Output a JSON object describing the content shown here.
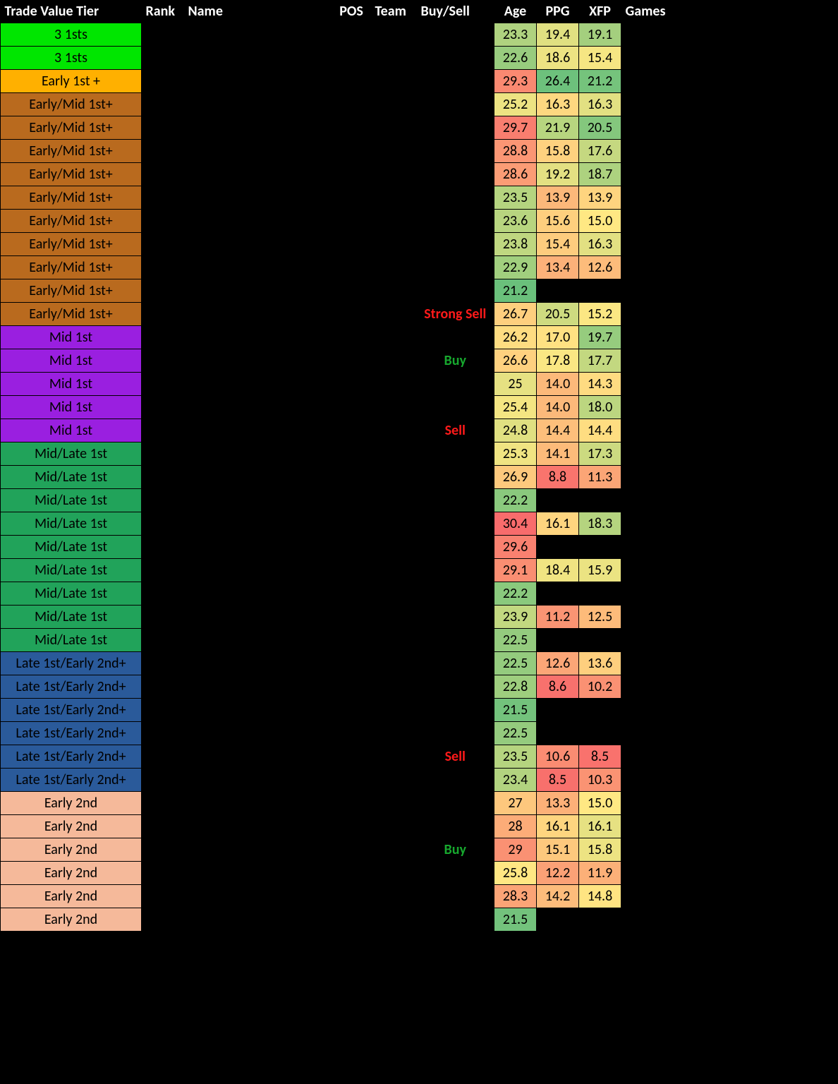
{
  "headers": {
    "tier": "Trade Value Tier",
    "rank": "Rank",
    "name": "Name",
    "pos": "POS",
    "team": "Team",
    "bs": "Buy/Sell",
    "age": "Age",
    "ppg": "PPG",
    "xfp": "XFP",
    "games": "Games"
  },
  "colors": {
    "header_text": "#ffffff",
    "bg": "#000000",
    "buy_text": "#17a82e",
    "sell_text": "#ff1a1a",
    "tier_border": "#000000"
  },
  "tier_colors": {
    "3 1sts": "#00e600",
    "Early 1st +": "#ffb000",
    "Early/Mid 1st+": "#b96a1e",
    "Mid 1st": "#9a1fe0",
    "Mid/Late 1st": "#21a35a",
    "Late 1st/Early 2nd+": "#2a5a9a",
    "Early 2nd": "#f5b99a"
  },
  "heat_scale": {
    "comment": "age: lower=green higher=red; ppg/xfp: higher=green lower=red",
    "age": {
      "min": 21.0,
      "max": 30.5,
      "low_color": "#63be7b",
      "mid_color": "#ffe883",
      "high_color": "#f8696b"
    },
    "ppg": {
      "min": 8.0,
      "max": 27.0,
      "low_color": "#f8696b",
      "mid_color": "#ffe883",
      "high_color": "#63be7b"
    },
    "xfp": {
      "min": 8.0,
      "max": 22.0,
      "low_color": "#f8696b",
      "mid_color": "#ffe883",
      "high_color": "#63be7b"
    }
  },
  "rows": [
    {
      "tier": "3 1sts",
      "bs": "",
      "age": 23.3,
      "ppg": 19.4,
      "xfp": 19.1
    },
    {
      "tier": "3 1sts",
      "bs": "",
      "age": 22.6,
      "ppg": 18.6,
      "xfp": 15.4
    },
    {
      "tier": "Early 1st +",
      "bs": "",
      "age": 29.3,
      "ppg": 26.4,
      "xfp": 21.2
    },
    {
      "tier": "Early/Mid 1st+",
      "bs": "",
      "age": 25.2,
      "ppg": 16.3,
      "xfp": 16.3
    },
    {
      "tier": "Early/Mid 1st+",
      "bs": "",
      "age": 29.7,
      "ppg": 21.9,
      "xfp": 20.5
    },
    {
      "tier": "Early/Mid 1st+",
      "bs": "",
      "age": 28.8,
      "ppg": 15.8,
      "xfp": 17.6
    },
    {
      "tier": "Early/Mid 1st+",
      "bs": "",
      "age": 28.6,
      "ppg": 19.2,
      "xfp": 18.7
    },
    {
      "tier": "Early/Mid 1st+",
      "bs": "",
      "age": 23.5,
      "ppg": 13.9,
      "xfp": 13.9
    },
    {
      "tier": "Early/Mid 1st+",
      "bs": "",
      "age": 23.6,
      "ppg": 15.6,
      "xfp": 15.0
    },
    {
      "tier": "Early/Mid 1st+",
      "bs": "",
      "age": 23.8,
      "ppg": 15.4,
      "xfp": 16.3
    },
    {
      "tier": "Early/Mid 1st+",
      "bs": "",
      "age": 22.9,
      "ppg": 13.4,
      "xfp": 12.6
    },
    {
      "tier": "Early/Mid 1st+",
      "bs": "",
      "age": 21.2,
      "ppg": null,
      "xfp": null
    },
    {
      "tier": "Early/Mid 1st+",
      "bs": "Strong Sell",
      "age": 26.7,
      "ppg": 20.5,
      "xfp": 15.2
    },
    {
      "tier": "Mid 1st",
      "bs": "",
      "age": 26.2,
      "ppg": 17.0,
      "xfp": 19.7
    },
    {
      "tier": "Mid 1st",
      "bs": "Buy",
      "age": 26.6,
      "ppg": 17.8,
      "xfp": 17.7
    },
    {
      "tier": "Mid 1st",
      "bs": "",
      "age": 25.0,
      "ppg": 14.0,
      "xfp": 14.3,
      "age_text": "25"
    },
    {
      "tier": "Mid 1st",
      "bs": "",
      "age": 25.4,
      "ppg": 14.0,
      "xfp": 18.0
    },
    {
      "tier": "Mid 1st",
      "bs": "Sell",
      "age": 24.8,
      "ppg": 14.4,
      "xfp": 14.4
    },
    {
      "tier": "Mid/Late 1st",
      "bs": "",
      "age": 25.3,
      "ppg": 14.1,
      "xfp": 17.3
    },
    {
      "tier": "Mid/Late 1st",
      "bs": "",
      "age": 26.9,
      "ppg": 8.8,
      "xfp": 11.3
    },
    {
      "tier": "Mid/Late 1st",
      "bs": "",
      "age": 22.2,
      "ppg": null,
      "xfp": null
    },
    {
      "tier": "Mid/Late 1st",
      "bs": "",
      "age": 30.4,
      "ppg": 16.1,
      "xfp": 18.3
    },
    {
      "tier": "Mid/Late 1st",
      "bs": "",
      "age": 29.6,
      "ppg": null,
      "xfp": null
    },
    {
      "tier": "Mid/Late 1st",
      "bs": "",
      "age": 29.1,
      "ppg": 18.4,
      "xfp": 15.9
    },
    {
      "tier": "Mid/Late 1st",
      "bs": "",
      "age": 22.2,
      "ppg": null,
      "xfp": null
    },
    {
      "tier": "Mid/Late 1st",
      "bs": "",
      "age": 23.9,
      "ppg": 11.2,
      "xfp": 12.5
    },
    {
      "tier": "Mid/Late 1st",
      "bs": "",
      "age": 22.5,
      "ppg": null,
      "xfp": null
    },
    {
      "tier": "Late 1st/Early 2nd+",
      "bs": "",
      "age": 22.5,
      "ppg": 12.6,
      "xfp": 13.6
    },
    {
      "tier": "Late 1st/Early 2nd+",
      "bs": "",
      "age": 22.8,
      "ppg": 8.6,
      "xfp": 10.2
    },
    {
      "tier": "Late 1st/Early 2nd+",
      "bs": "",
      "age": 21.5,
      "ppg": null,
      "xfp": null
    },
    {
      "tier": "Late 1st/Early 2nd+",
      "bs": "",
      "age": 22.5,
      "ppg": null,
      "xfp": null
    },
    {
      "tier": "Late 1st/Early 2nd+",
      "bs": "Sell",
      "age": 23.5,
      "ppg": 10.6,
      "xfp": 8.5
    },
    {
      "tier": "Late 1st/Early 2nd+",
      "bs": "",
      "age": 23.4,
      "ppg": 8.5,
      "xfp": 10.3
    },
    {
      "tier": "Early 2nd",
      "bs": "",
      "age": 27.0,
      "ppg": 13.3,
      "xfp": 15.0,
      "age_text": "27"
    },
    {
      "tier": "Early 2nd",
      "bs": "",
      "age": 28.0,
      "ppg": 16.1,
      "xfp": 16.1,
      "age_text": "28"
    },
    {
      "tier": "Early 2nd",
      "bs": "Buy",
      "age": 29.0,
      "ppg": 15.1,
      "xfp": 15.8,
      "age_text": "29"
    },
    {
      "tier": "Early 2nd",
      "bs": "",
      "age": 25.8,
      "ppg": 12.2,
      "xfp": 11.9
    },
    {
      "tier": "Early 2nd",
      "bs": "",
      "age": 28.3,
      "ppg": 14.2,
      "xfp": 14.8
    },
    {
      "tier": "Early 2nd",
      "bs": "",
      "age": 21.5,
      "ppg": null,
      "xfp": null
    }
  ]
}
